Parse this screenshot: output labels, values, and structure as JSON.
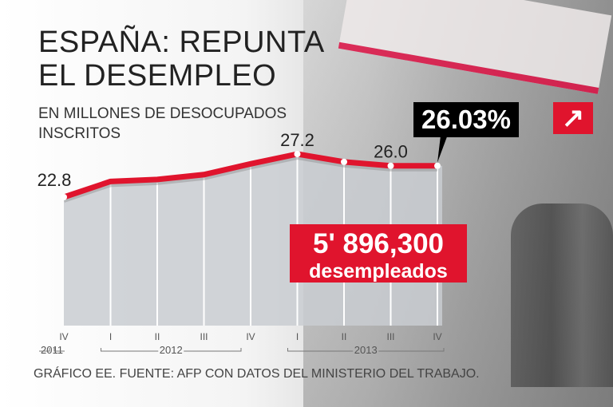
{
  "title_lines": [
    "ESPAÑA: REPUNTA",
    "EL DESEMPLEO"
  ],
  "subtitle_lines": [
    "EN MILLONES DE DESOCUPADOS",
    "INSCRITOS"
  ],
  "change_badge": "26.03%",
  "change_icon": "arrow-up-right-icon",
  "total_number": "5' 896,300",
  "total_label": "desempleados",
  "source": "GRÁFICO EE. FUENTE: AFP CON DATOS DEL MINISTERIO DEL TRABAJO.",
  "colors": {
    "line": "#e0142d",
    "area": "#c9ccd1",
    "badge": "#000000"
  },
  "chart_data": {
    "type": "area",
    "title": "ESPAÑA: REPUNTA EL DESEMPLEO",
    "ylabel": "EN MILLONES DE DESOCUPADOS INSCRITOS",
    "categories": [
      "IV",
      "I",
      "II",
      "III",
      "IV",
      "I",
      "II",
      "III",
      "IV"
    ],
    "years": [
      {
        "label": "2011",
        "span": [
          0,
          0
        ]
      },
      {
        "label": "2012",
        "span": [
          1,
          4
        ]
      },
      {
        "label": "2013",
        "span": [
          5,
          8
        ]
      }
    ],
    "values": [
      22.8,
      24.4,
      24.6,
      25.1,
      26.2,
      27.2,
      26.4,
      26.0,
      26.0
    ],
    "data_labels": [
      {
        "index": 0,
        "text": "22.8"
      },
      {
        "index": 5,
        "text": "27.2"
      },
      {
        "index": 7,
        "text": "26.0"
      }
    ],
    "ylim": [
      14.5,
      27.2
    ],
    "grid": true
  }
}
